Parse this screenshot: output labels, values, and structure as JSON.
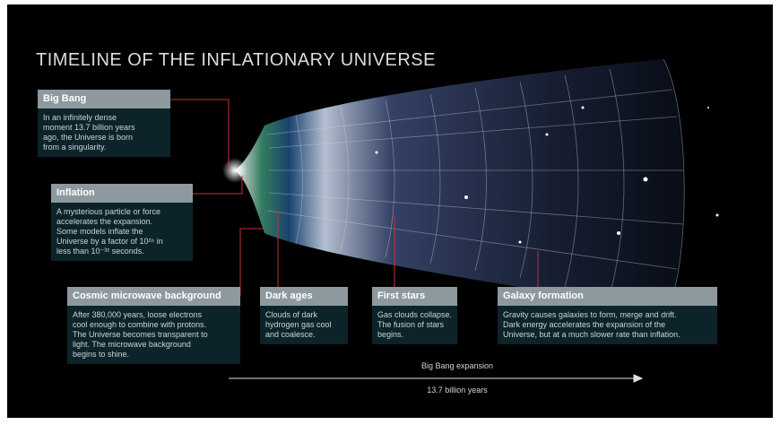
{
  "title": "TIMELINE OF THE INFLATIONARY UNIVERSE",
  "boxes": [
    {
      "heading": "Big Bang",
      "text": [
        "In an infinitely dense",
        "moment 13.7 billion years",
        "ago, the Universe is born",
        "from a singularity."
      ]
    },
    {
      "heading": "Inflation",
      "text": [
        "A mysterious particle or force",
        "accelerates the expansion.",
        "Some models inflate the",
        "Universe by a factor of 10²⁶ in",
        "less than 10⁻³² seconds."
      ]
    },
    {
      "heading": "Cosmic microwave background",
      "text": [
        "After 380,000 years, loose electrons",
        "cool enough to combine with protons.",
        "The Universe becomes transparent to",
        "light. The microwave background",
        "begins to shine."
      ]
    },
    {
      "heading": "Dark ages",
      "text": [
        "Clouds of dark",
        "hydrogen gas cool",
        "and coalesce."
      ]
    },
    {
      "heading": "First stars",
      "text": [
        "Gas clouds collapse.",
        "The fusion of stars",
        "begins."
      ]
    },
    {
      "heading": "Galaxy formation",
      "text": [
        "Gravity causes galaxies to form, merge and drift.",
        "Dark energy accelerates the expansion of the",
        "Universe, but at a much slower rate than inflation."
      ]
    }
  ],
  "axis": {
    "top_label": "Big Bang expansion",
    "bottom_label": "13.7 billion years"
  }
}
